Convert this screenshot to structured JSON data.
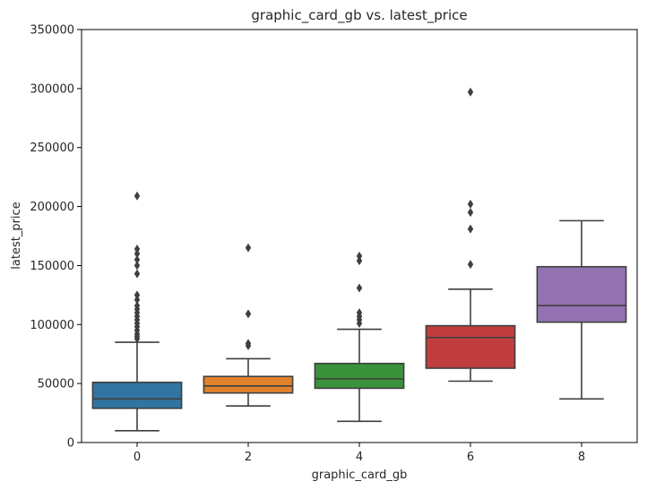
{
  "chart_data": {
    "type": "box",
    "title": "graphic_card_gb vs. latest_price",
    "xlabel": "graphic_card_gb",
    "ylabel": "latest_price",
    "ylim": [
      0,
      350000
    ],
    "yticks": [
      0,
      50000,
      100000,
      150000,
      200000,
      250000,
      300000,
      350000
    ],
    "grid": false,
    "categories": [
      "0",
      "2",
      "4",
      "6",
      "8"
    ],
    "colors": [
      "#3274a1",
      "#e1812c",
      "#3a923a",
      "#c03d3e",
      "#9372b2"
    ],
    "boxes": [
      {
        "category": "0",
        "whisker_low": 10000,
        "q1": 29000,
        "median": 37000,
        "q3": 51000,
        "whisker_high": 85000,
        "outliers": [
          88000,
          90000,
          92000,
          95000,
          98000,
          101000,
          104000,
          107000,
          110000,
          113000,
          116000,
          121000,
          125000,
          143000,
          150000,
          155000,
          160000,
          164000,
          209000
        ]
      },
      {
        "category": "2",
        "whisker_low": 31000,
        "q1": 42000,
        "median": 48000,
        "q3": 56000,
        "whisker_high": 71000,
        "outliers": [
          82000,
          84000,
          109000,
          165000
        ]
      },
      {
        "category": "4",
        "whisker_low": 18000,
        "q1": 46000,
        "median": 54000,
        "q3": 67000,
        "whisker_high": 96000,
        "outliers": [
          101000,
          104000,
          107000,
          110000,
          131000,
          154000,
          158000
        ]
      },
      {
        "category": "6",
        "whisker_low": 52000,
        "q1": 63000,
        "median": 89000,
        "q3": 99000,
        "whisker_high": 130000,
        "outliers": [
          151000,
          181000,
          195000,
          202000,
          297000
        ]
      },
      {
        "category": "8",
        "whisker_low": 37000,
        "q1": 102000,
        "median": 116000,
        "q3": 149000,
        "whisker_high": 188000,
        "outliers": []
      }
    ]
  }
}
